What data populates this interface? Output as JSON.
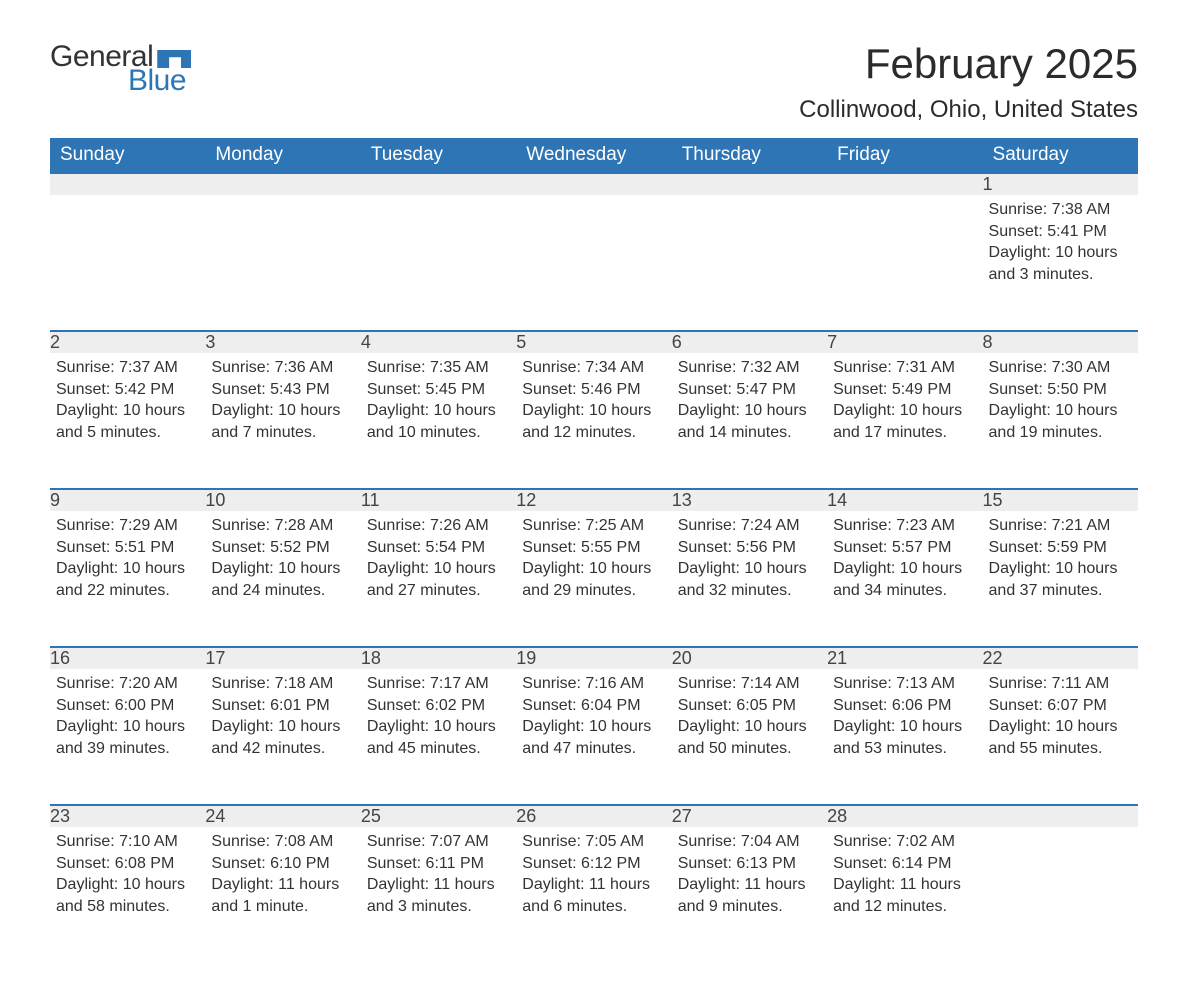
{
  "brand": {
    "part1": "General",
    "part2": "Blue"
  },
  "title": "February 2025",
  "location": "Collinwood, Ohio, United States",
  "colors": {
    "header_bg": "#2e75b6",
    "header_text": "#ffffff",
    "daynum_bg": "#eeeeee",
    "daynum_border": "#2e75b6",
    "body_text": "#333333",
    "title_text": "#2b2b2b",
    "logo_dark": "#333333",
    "logo_blue": "#2e75b6",
    "background": "#ffffff"
  },
  "typography": {
    "title_fontsize": 42,
    "location_fontsize": 24,
    "header_fontsize": 19,
    "daynum_fontsize": 18,
    "content_fontsize": 16,
    "logo_fontsize": 30
  },
  "weekdays": [
    "Sunday",
    "Monday",
    "Tuesday",
    "Wednesday",
    "Thursday",
    "Friday",
    "Saturday"
  ],
  "weeks": [
    [
      null,
      null,
      null,
      null,
      null,
      null,
      {
        "n": "1",
        "sunrise": "Sunrise: 7:38 AM",
        "sunset": "Sunset: 5:41 PM",
        "daylight": "Daylight: 10 hours and 3 minutes."
      }
    ],
    [
      {
        "n": "2",
        "sunrise": "Sunrise: 7:37 AM",
        "sunset": "Sunset: 5:42 PM",
        "daylight": "Daylight: 10 hours and 5 minutes."
      },
      {
        "n": "3",
        "sunrise": "Sunrise: 7:36 AM",
        "sunset": "Sunset: 5:43 PM",
        "daylight": "Daylight: 10 hours and 7 minutes."
      },
      {
        "n": "4",
        "sunrise": "Sunrise: 7:35 AM",
        "sunset": "Sunset: 5:45 PM",
        "daylight": "Daylight: 10 hours and 10 minutes."
      },
      {
        "n": "5",
        "sunrise": "Sunrise: 7:34 AM",
        "sunset": "Sunset: 5:46 PM",
        "daylight": "Daylight: 10 hours and 12 minutes."
      },
      {
        "n": "6",
        "sunrise": "Sunrise: 7:32 AM",
        "sunset": "Sunset: 5:47 PM",
        "daylight": "Daylight: 10 hours and 14 minutes."
      },
      {
        "n": "7",
        "sunrise": "Sunrise: 7:31 AM",
        "sunset": "Sunset: 5:49 PM",
        "daylight": "Daylight: 10 hours and 17 minutes."
      },
      {
        "n": "8",
        "sunrise": "Sunrise: 7:30 AM",
        "sunset": "Sunset: 5:50 PM",
        "daylight": "Daylight: 10 hours and 19 minutes."
      }
    ],
    [
      {
        "n": "9",
        "sunrise": "Sunrise: 7:29 AM",
        "sunset": "Sunset: 5:51 PM",
        "daylight": "Daylight: 10 hours and 22 minutes."
      },
      {
        "n": "10",
        "sunrise": "Sunrise: 7:28 AM",
        "sunset": "Sunset: 5:52 PM",
        "daylight": "Daylight: 10 hours and 24 minutes."
      },
      {
        "n": "11",
        "sunrise": "Sunrise: 7:26 AM",
        "sunset": "Sunset: 5:54 PM",
        "daylight": "Daylight: 10 hours and 27 minutes."
      },
      {
        "n": "12",
        "sunrise": "Sunrise: 7:25 AM",
        "sunset": "Sunset: 5:55 PM",
        "daylight": "Daylight: 10 hours and 29 minutes."
      },
      {
        "n": "13",
        "sunrise": "Sunrise: 7:24 AM",
        "sunset": "Sunset: 5:56 PM",
        "daylight": "Daylight: 10 hours and 32 minutes."
      },
      {
        "n": "14",
        "sunrise": "Sunrise: 7:23 AM",
        "sunset": "Sunset: 5:57 PM",
        "daylight": "Daylight: 10 hours and 34 minutes."
      },
      {
        "n": "15",
        "sunrise": "Sunrise: 7:21 AM",
        "sunset": "Sunset: 5:59 PM",
        "daylight": "Daylight: 10 hours and 37 minutes."
      }
    ],
    [
      {
        "n": "16",
        "sunrise": "Sunrise: 7:20 AM",
        "sunset": "Sunset: 6:00 PM",
        "daylight": "Daylight: 10 hours and 39 minutes."
      },
      {
        "n": "17",
        "sunrise": "Sunrise: 7:18 AM",
        "sunset": "Sunset: 6:01 PM",
        "daylight": "Daylight: 10 hours and 42 minutes."
      },
      {
        "n": "18",
        "sunrise": "Sunrise: 7:17 AM",
        "sunset": "Sunset: 6:02 PM",
        "daylight": "Daylight: 10 hours and 45 minutes."
      },
      {
        "n": "19",
        "sunrise": "Sunrise: 7:16 AM",
        "sunset": "Sunset: 6:04 PM",
        "daylight": "Daylight: 10 hours and 47 minutes."
      },
      {
        "n": "20",
        "sunrise": "Sunrise: 7:14 AM",
        "sunset": "Sunset: 6:05 PM",
        "daylight": "Daylight: 10 hours and 50 minutes."
      },
      {
        "n": "21",
        "sunrise": "Sunrise: 7:13 AM",
        "sunset": "Sunset: 6:06 PM",
        "daylight": "Daylight: 10 hours and 53 minutes."
      },
      {
        "n": "22",
        "sunrise": "Sunrise: 7:11 AM",
        "sunset": "Sunset: 6:07 PM",
        "daylight": "Daylight: 10 hours and 55 minutes."
      }
    ],
    [
      {
        "n": "23",
        "sunrise": "Sunrise: 7:10 AM",
        "sunset": "Sunset: 6:08 PM",
        "daylight": "Daylight: 10 hours and 58 minutes."
      },
      {
        "n": "24",
        "sunrise": "Sunrise: 7:08 AM",
        "sunset": "Sunset: 6:10 PM",
        "daylight": "Daylight: 11 hours and 1 minute."
      },
      {
        "n": "25",
        "sunrise": "Sunrise: 7:07 AM",
        "sunset": "Sunset: 6:11 PM",
        "daylight": "Daylight: 11 hours and 3 minutes."
      },
      {
        "n": "26",
        "sunrise": "Sunrise: 7:05 AM",
        "sunset": "Sunset: 6:12 PM",
        "daylight": "Daylight: 11 hours and 6 minutes."
      },
      {
        "n": "27",
        "sunrise": "Sunrise: 7:04 AM",
        "sunset": "Sunset: 6:13 PM",
        "daylight": "Daylight: 11 hours and 9 minutes."
      },
      {
        "n": "28",
        "sunrise": "Sunrise: 7:02 AM",
        "sunset": "Sunset: 6:14 PM",
        "daylight": "Daylight: 11 hours and 12 minutes."
      },
      null
    ]
  ]
}
